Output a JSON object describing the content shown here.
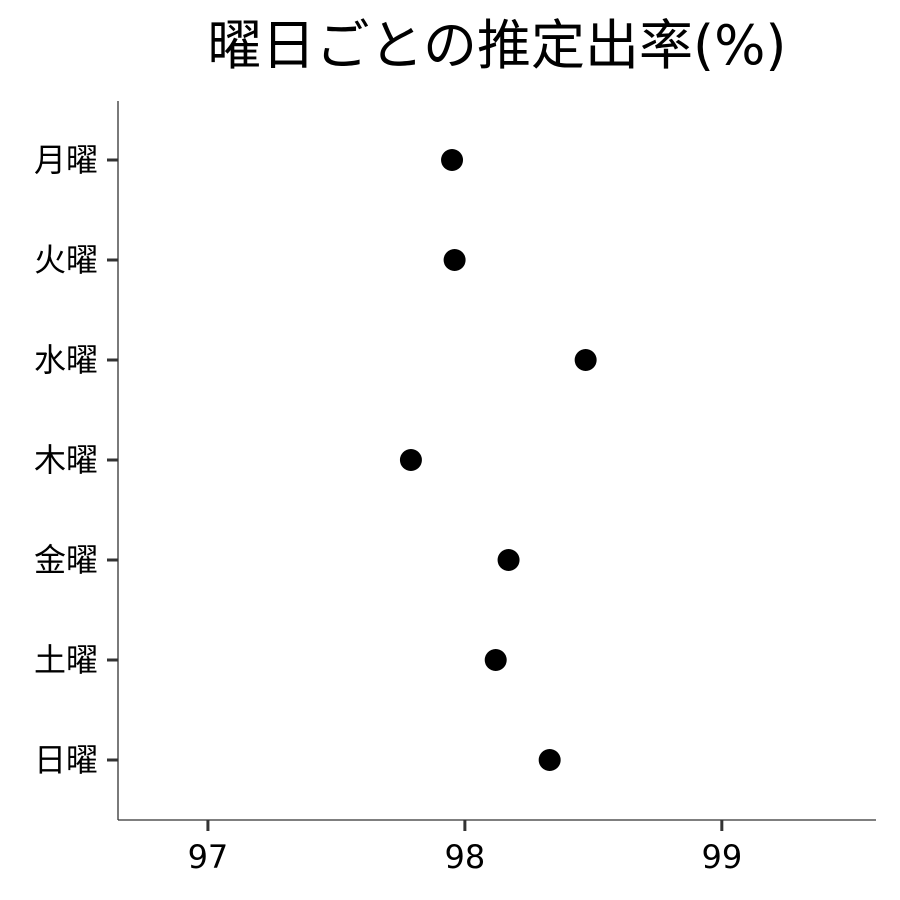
{
  "chart_data": {
    "type": "scatter",
    "title": "曜日ごとの推定出率(%)",
    "xlabel": "",
    "ylabel": "",
    "categories": [
      "月曜",
      "火曜",
      "水曜",
      "木曜",
      "金曜",
      "土曜",
      "日曜"
    ],
    "values": [
      97.95,
      97.96,
      98.47,
      97.79,
      98.17,
      98.12,
      98.33
    ],
    "xlim": [
      96.65,
      99.6
    ],
    "xticks": [
      "97",
      "98",
      "99"
    ],
    "grid": false,
    "legend": "none",
    "point_color": "#000000"
  }
}
